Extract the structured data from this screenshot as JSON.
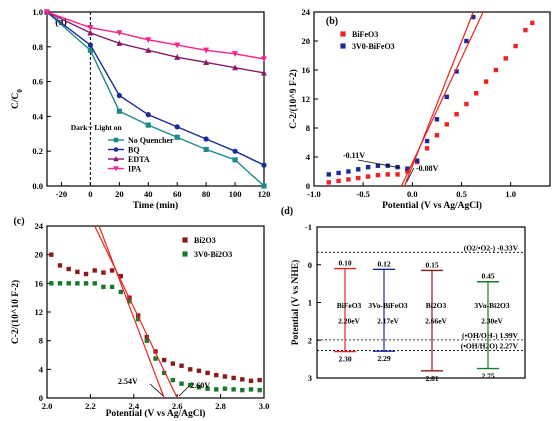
{
  "chart_data": [
    {
      "panel_label": "(a)",
      "type": "line",
      "xlabel": "Time (min)",
      "ylabel": "C/C0",
      "xlim": [
        -30,
        120
      ],
      "ylim": [
        0.0,
        1.0
      ],
      "xticks": [
        "-20",
        "0",
        "20",
        "40",
        "60",
        "80",
        "100",
        "120"
      ],
      "yticks": [
        "0.0",
        "0.2",
        "0.4",
        "0.6",
        "0.8",
        "1.0"
      ],
      "annotation_dark": "Dark",
      "annotation_light": "Light on",
      "divider_x": 0,
      "legend_position": "bottom-center",
      "series": [
        {
          "name": "No Quencher",
          "color": "#1f8a8a",
          "marker": "square",
          "x": [
            -30,
            0,
            20,
            40,
            60,
            80,
            100,
            120
          ],
          "y": [
            1.0,
            0.78,
            0.43,
            0.35,
            0.28,
            0.21,
            0.15,
            0.0
          ]
        },
        {
          "name": "BQ",
          "color": "#1a2a9a",
          "marker": "circle",
          "x": [
            -30,
            0,
            20,
            40,
            60,
            80,
            100,
            120
          ],
          "y": [
            1.0,
            0.81,
            0.52,
            0.41,
            0.34,
            0.27,
            0.2,
            0.12
          ]
        },
        {
          "name": "EDTA",
          "color": "#8a1a6a",
          "marker": "triangle",
          "x": [
            -30,
            0,
            20,
            40,
            60,
            80,
            100,
            120
          ],
          "y": [
            1.0,
            0.88,
            0.82,
            0.78,
            0.74,
            0.71,
            0.68,
            0.65
          ]
        },
        {
          "name": "IPA",
          "color": "#ff2288",
          "marker": "triangle-down",
          "x": [
            -30,
            0,
            20,
            40,
            60,
            80,
            100,
            120
          ],
          "y": [
            1.0,
            0.91,
            0.88,
            0.84,
            0.81,
            0.78,
            0.76,
            0.73
          ]
        }
      ]
    },
    {
      "panel_label": "(b)",
      "type": "scatter",
      "xlabel": "Potential (V vs Ag/AgCl)",
      "ylabel": "C-2/(10^9 F-2)",
      "xlim": [
        -1.0,
        1.4
      ],
      "ylim": [
        0,
        24
      ],
      "xticks": [
        "-1.0",
        "-0.5",
        "0.0",
        "0.5",
        "1.0"
      ],
      "yticks": [
        "0",
        "4",
        "8",
        "12",
        "16",
        "20",
        "24"
      ],
      "legend_position": "top-left",
      "annotations": [
        "-0.11V",
        "-0.08V"
      ],
      "series": [
        {
          "name": "BiFeO3",
          "color": "#ee2222",
          "marker": "square",
          "x": [
            -0.85,
            -0.75,
            -0.65,
            -0.55,
            -0.45,
            -0.35,
            -0.25,
            -0.15,
            -0.05,
            0.05,
            0.15,
            0.25,
            0.35,
            0.45,
            0.55,
            0.65,
            0.75,
            0.85,
            0.95,
            1.05,
            1.15,
            1.22
          ],
          "y": [
            0.5,
            0.7,
            0.9,
            1.1,
            1.3,
            1.5,
            1.6,
            1.6,
            2.0,
            3.3,
            5.2,
            7.0,
            8.5,
            9.9,
            11.3,
            12.8,
            14.4,
            16.0,
            17.6,
            19.3,
            21.5,
            22.5
          ]
        },
        {
          "name": "3V0-BiFeO3",
          "color": "#1a2a9a",
          "marker": "square",
          "x": [
            -0.85,
            -0.75,
            -0.65,
            -0.55,
            -0.45,
            -0.35,
            -0.25,
            -0.15,
            -0.05,
            0.05,
            0.15,
            0.25,
            0.35,
            0.45,
            0.55,
            0.62
          ],
          "y": [
            1.6,
            1.8,
            2.0,
            2.3,
            2.6,
            2.8,
            2.8,
            2.6,
            2.4,
            3.5,
            6.2,
            9.2,
            12.3,
            15.8,
            20.0,
            23.3
          ]
        }
      ],
      "tangent_lines": [
        {
          "x": [
            -0.11,
            0.72
          ],
          "y": [
            0,
            24
          ]
        },
        {
          "x": [
            -0.08,
            0.62
          ],
          "y": [
            0,
            24
          ]
        }
      ],
      "xvals_annotated": [
        -0.11,
        -0.08
      ]
    },
    {
      "panel_label": "(c)",
      "type": "scatter",
      "xlabel": "Potential (V vs Ag/AgCl)",
      "ylabel": "C-2/(10^10 F-2)",
      "xlim": [
        2.0,
        3.0
      ],
      "ylim": [
        0,
        24
      ],
      "xticks": [
        "2.0",
        "2.2",
        "2.4",
        "2.6",
        "2.8",
        "3.0"
      ],
      "yticks": [
        "0",
        "4",
        "8",
        "12",
        "16",
        "20",
        "24"
      ],
      "legend_position": "top-right",
      "annotations": [
        "2.54V",
        "2.60V"
      ],
      "series": [
        {
          "name": "Bi2O3",
          "color": "#8a1a1a",
          "marker": "square",
          "x": [
            2.02,
            2.06,
            2.1,
            2.14,
            2.18,
            2.22,
            2.26,
            2.3,
            2.34,
            2.38,
            2.42,
            2.46,
            2.5,
            2.54,
            2.58,
            2.62,
            2.66,
            2.7,
            2.74,
            2.78,
            2.82,
            2.86,
            2.9,
            2.94,
            2.98
          ],
          "y": [
            20.0,
            18.5,
            18.0,
            17.6,
            17.3,
            17.8,
            17.5,
            17.8,
            17.0,
            14.0,
            11.5,
            8.5,
            6.5,
            5.3,
            4.8,
            4.5,
            4.0,
            3.8,
            3.5,
            3.2,
            3.0,
            2.8,
            2.6,
            2.4,
            2.5
          ]
        },
        {
          "name": "3V0-Bi2O3",
          "color": "#1a7a2a",
          "marker": "square",
          "x": [
            2.02,
            2.06,
            2.1,
            2.14,
            2.18,
            2.22,
            2.26,
            2.3,
            2.34,
            2.38,
            2.42,
            2.46,
            2.5,
            2.54,
            2.58,
            2.62,
            2.66,
            2.7,
            2.74,
            2.78,
            2.82,
            2.86,
            2.9,
            2.94,
            2.98
          ],
          "y": [
            16.0,
            16.0,
            16.0,
            16.0,
            16.0,
            16.0,
            15.5,
            15.5,
            14.8,
            13.5,
            11.0,
            8.0,
            5.5,
            3.5,
            2.5,
            2.0,
            1.8,
            1.5,
            1.3,
            1.2,
            1.3,
            1.2,
            1.1,
            1.2,
            1.1
          ]
        }
      ],
      "tangent_lines": [
        {
          "x": [
            2.22,
            2.6
          ],
          "y": [
            24,
            0
          ]
        },
        {
          "x": [
            2.24,
            2.54
          ],
          "y": [
            24,
            0
          ]
        }
      ],
      "xvals_annotated": [
        2.54,
        2.6
      ]
    },
    {
      "panel_label": "(d)",
      "type": "diagram",
      "ylabel": "Potential (V vs NHE)",
      "ylim": [
        -1,
        3
      ],
      "yticks": [
        "-1",
        "0",
        "1",
        "2",
        "3"
      ],
      "reference_levels": [
        {
          "value": -0.33,
          "label": "(O2/•O2-)  -0.33V"
        },
        {
          "value": 1.99,
          "label": "(•OH/OH-)   1.99V"
        },
        {
          "value": 2.27,
          "label": "(•OH/H2O)  2.27V"
        }
      ],
      "materials": [
        {
          "name": "BiFeO3",
          "gap": "2.20eV",
          "cb": 0.1,
          "vb": 2.3,
          "cb_label": "0.10",
          "vb_label": "2.30",
          "color": "#ee2222"
        },
        {
          "name": "3Vo-BiFeO3",
          "gap": "2.17eV",
          "cb": 0.12,
          "vb": 2.29,
          "cb_label": "0.12",
          "vb_label": "2.29",
          "color": "#1a2a9a"
        },
        {
          "name": "Bi2O3",
          "gap": "2.66eV",
          "cb": 0.15,
          "vb": 2.81,
          "cb_label": "0.15",
          "vb_label": "2.81",
          "color": "#8a1a1a"
        },
        {
          "name": "3Vo-Bi2O3",
          "gap": "2.30eV",
          "cb": 0.45,
          "vb": 2.75,
          "cb_label": "0.45",
          "vb_label": "2.75",
          "color": "#1a7a2a"
        }
      ]
    }
  ]
}
